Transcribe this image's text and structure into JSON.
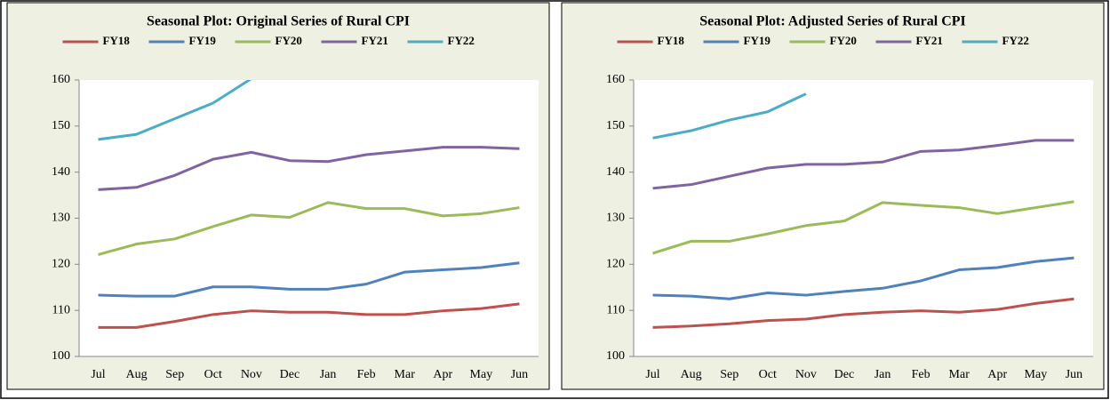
{
  "chart_data": [
    {
      "type": "line",
      "title": "Seasonal Plot: Original Series of  Rural CPI",
      "categories": [
        "Jul",
        "Aug",
        "Sep",
        "Oct",
        "Nov",
        "Dec",
        "Jan",
        "Feb",
        "Mar",
        "Apr",
        "May",
        "Jun"
      ],
      "ylim": [
        100,
        160
      ],
      "yticks": [
        100,
        110,
        120,
        130,
        140,
        150,
        160
      ],
      "series": [
        {
          "name": "FY18",
          "color": "#c0504d",
          "values": [
            106.3,
            106.3,
            107.6,
            109.1,
            109.9,
            109.6,
            109.6,
            109.1,
            109.1,
            109.9,
            110.4,
            111.4
          ]
        },
        {
          "name": "FY19",
          "color": "#4f81bd",
          "values": [
            113.3,
            113.1,
            113.1,
            115.1,
            115.1,
            114.6,
            114.6,
            115.7,
            118.3,
            118.8,
            119.3,
            120.3
          ]
        },
        {
          "name": "FY20",
          "color": "#9bbb59",
          "values": [
            122.1,
            124.4,
            125.5,
            128.2,
            130.7,
            130.2,
            133.4,
            132.1,
            132.1,
            130.5,
            131.0,
            132.3
          ]
        },
        {
          "name": "FY21",
          "color": "#8064a2",
          "values": [
            136.2,
            136.7,
            139.3,
            142.8,
            144.3,
            142.5,
            142.3,
            143.8,
            144.6,
            145.4,
            145.4,
            145.1
          ]
        },
        {
          "name": "FY22",
          "color": "#4bacc6",
          "values": [
            147.1,
            148.2,
            151.6,
            155.0,
            160.3,
            null,
            null,
            null,
            null,
            null,
            null,
            null
          ]
        }
      ]
    },
    {
      "type": "line",
      "title": "Seasonal Plot: Adjusted Series of  Rural CPI",
      "categories": [
        "Jul",
        "Aug",
        "Sep",
        "Oct",
        "Nov",
        "Dec",
        "Jan",
        "Feb",
        "Mar",
        "Apr",
        "May",
        "Jun"
      ],
      "ylim": [
        100,
        160
      ],
      "yticks": [
        100,
        110,
        120,
        130,
        140,
        150,
        160
      ],
      "series": [
        {
          "name": "FY18",
          "color": "#c0504d",
          "values": [
            106.3,
            106.6,
            107.1,
            107.8,
            108.1,
            109.1,
            109.6,
            109.9,
            109.6,
            110.2,
            111.5,
            112.5
          ]
        },
        {
          "name": "FY19",
          "color": "#4f81bd",
          "values": [
            113.3,
            113.1,
            112.5,
            113.8,
            113.3,
            114.1,
            114.8,
            116.4,
            118.8,
            119.3,
            120.6,
            121.4
          ]
        },
        {
          "name": "FY20",
          "color": "#9bbb59",
          "values": [
            122.4,
            125.0,
            125.0,
            126.6,
            128.4,
            129.4,
            133.4,
            132.8,
            132.3,
            131.0,
            132.3,
            133.6
          ]
        },
        {
          "name": "FY21",
          "color": "#8064a2",
          "values": [
            136.5,
            137.3,
            139.1,
            140.9,
            141.7,
            141.7,
            142.2,
            144.5,
            144.8,
            145.8,
            146.9,
            146.9
          ]
        },
        {
          "name": "FY22",
          "color": "#4bacc6",
          "values": [
            147.4,
            149.0,
            151.3,
            153.1,
            157.0,
            null,
            null,
            null,
            null,
            null,
            null,
            null
          ]
        }
      ]
    }
  ]
}
